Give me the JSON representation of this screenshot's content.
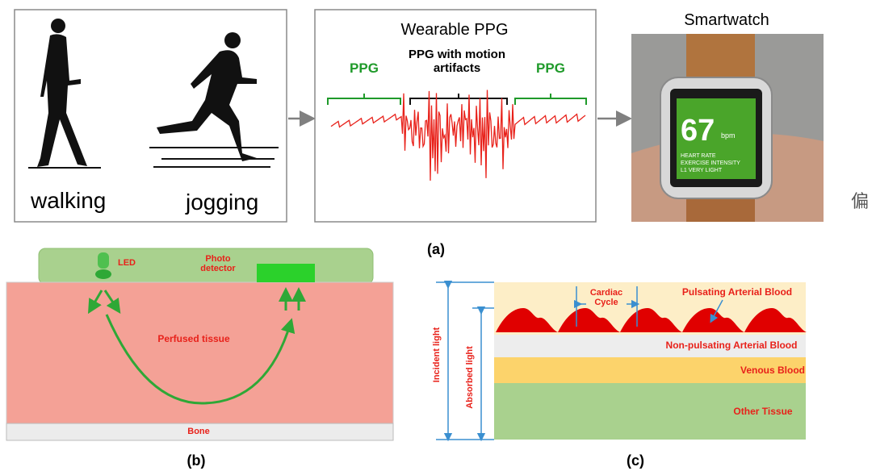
{
  "panel_a": {
    "activity": {
      "walking": "walking",
      "jogging": "jogging"
    },
    "ppg": {
      "title": "Wearable PPG",
      "left_label": "PPG",
      "middle_label": "PPG with motion artifacts",
      "right_label": "PPG"
    },
    "watch": {
      "title": "Smartwatch",
      "value": "67",
      "unit": "bpm",
      "line1": "HEART RATE",
      "line2": "EXERCISE INTENSITY",
      "line3": "L1 VERY LIGHT"
    },
    "side_char": "偏",
    "caption": "(a)"
  },
  "panel_b": {
    "led": "LED",
    "detector": "Photo detector",
    "tissue": "Perfused tissue",
    "bone": "Bone",
    "caption": "(b)"
  },
  "panel_c": {
    "cardiac": "Cardiac Cycle",
    "pulsating": "Pulsating Arterial Blood",
    "non_pulsating": "Non-pulsating Arterial Blood",
    "venous": "Venous Blood",
    "other": "Other Tissue",
    "incident": "Incident light",
    "absorbed": "Absorbed light",
    "caption": "(c)"
  }
}
